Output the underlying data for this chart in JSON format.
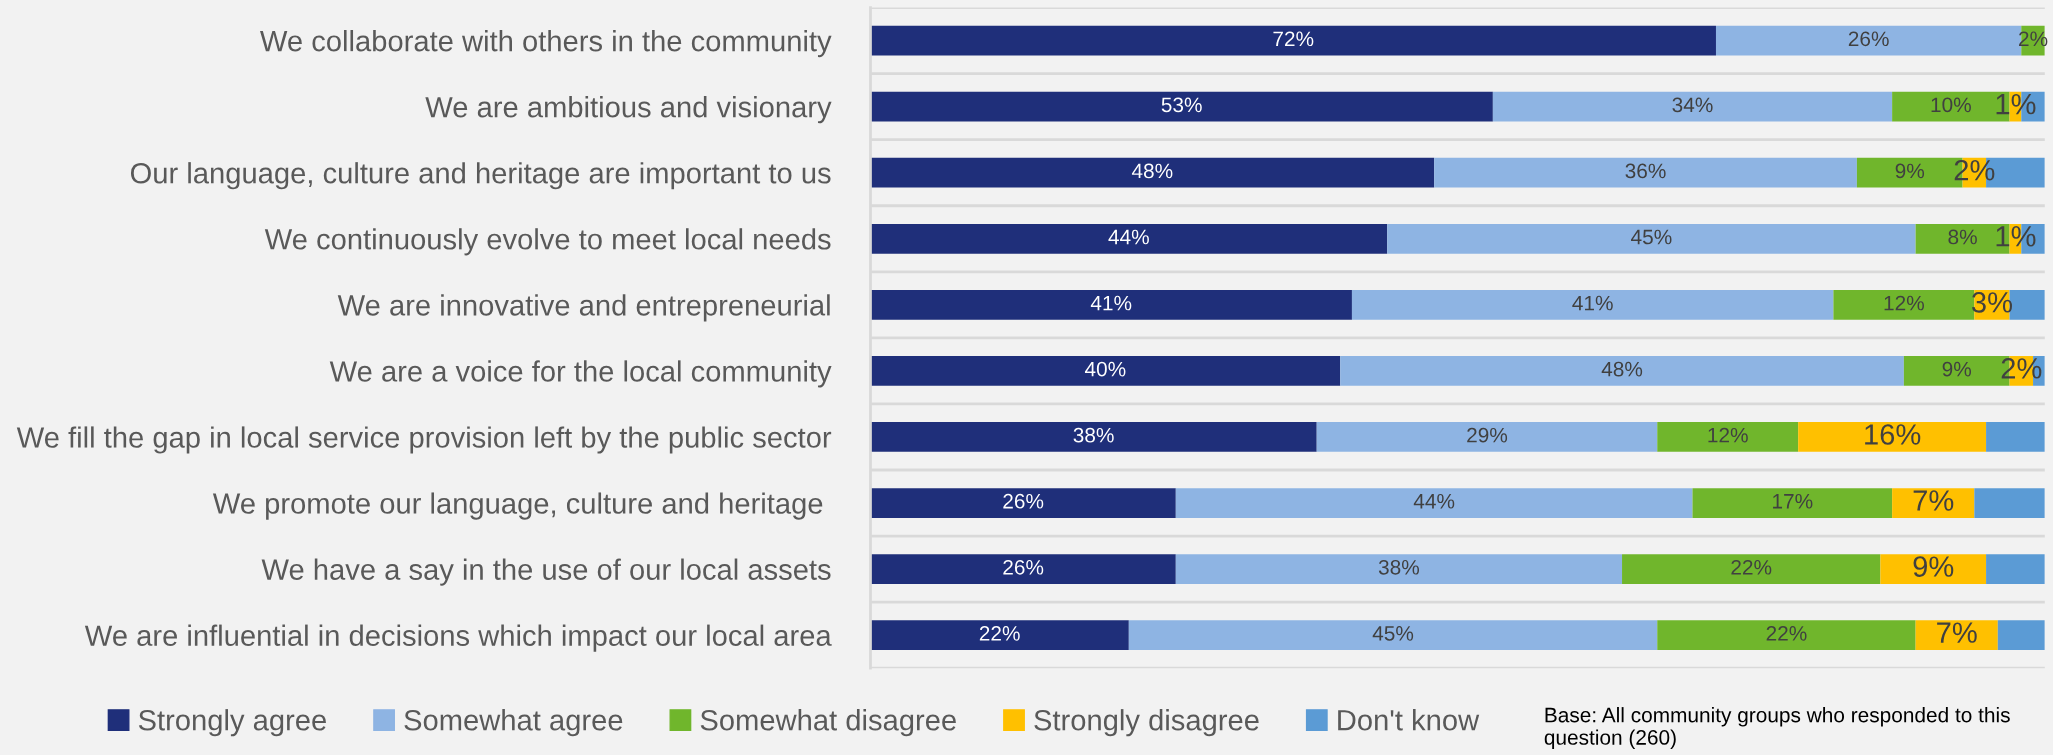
{
  "chart_data": {
    "type": "bar",
    "orientation": "horizontal",
    "stacked": true,
    "categories": [
      "We collaborate with others in the community",
      "We are ambitious and visionary",
      "Our language, culture and heritage are important to us",
      "We continuously evolve to meet local needs",
      "We are innovative and entrepreneurial",
      "We are a voice for the local community",
      "We fill the gap in local service provision left by the public sector",
      "We promote our language, culture and heritage ",
      "We have a say in the use of our local assets",
      "We are influential in decisions which impact our local area"
    ],
    "xlim": [
      0,
      100
    ],
    "tick_labels": "y",
    "grid": "y",
    "legend": "bottom",
    "series": [
      {
        "name": "Strongly agree",
        "color": "#1f2f7a",
        "values": [
          72,
          53,
          48,
          44,
          41,
          40,
          38,
          26,
          26,
          22
        ],
        "value_labels": [
          "72%",
          "53%",
          "48%",
          "44%",
          "41%",
          "40%",
          "38%",
          "26%",
          "26%",
          "22%"
        ]
      },
      {
        "name": "Somewhat agree",
        "color": "#8eb4e3",
        "values": [
          26,
          34,
          36,
          45,
          41,
          48,
          29,
          44,
          38,
          45
        ],
        "value_labels": [
          "26%",
          "34%",
          "36%",
          "45%",
          "41%",
          "48%",
          "29%",
          "44%",
          "38%",
          "45%"
        ]
      },
      {
        "name": "Somewhat disagree",
        "color": "#70b62c",
        "values": [
          2,
          10,
          9,
          8,
          12,
          9,
          12,
          17,
          22,
          22
        ],
        "value_labels": [
          "2%",
          "10%",
          "9%",
          "8%",
          "12%",
          "9%",
          "12%",
          "17%",
          "22%",
          "22%"
        ]
      },
      {
        "name": "Strongly disagree",
        "color": "#ffc000",
        "values": [
          0,
          1,
          2,
          1,
          3,
          2,
          16,
          7,
          9,
          7
        ],
        "value_labels": [
          null,
          "1%",
          "2%",
          "1%",
          "3%",
          "2%",
          "16%",
          "7%",
          "9%",
          "7%"
        ]
      },
      {
        "name": "Don't know",
        "color": "#5b9bd5",
        "values": [
          0,
          2,
          5,
          2,
          3,
          1,
          5,
          6,
          5,
          4
        ],
        "value_labels": [
          null,
          null,
          null,
          null,
          null,
          null,
          null,
          null,
          null,
          null
        ]
      }
    ],
    "annotations": [
      "Base: All community groups who responded to this question (260)"
    ]
  }
}
